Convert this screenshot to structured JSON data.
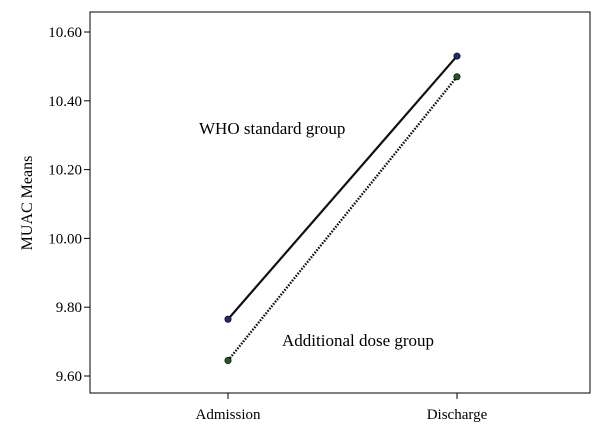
{
  "chart_data": {
    "type": "line",
    "ylabel": "MUAC Means",
    "xlabel": "",
    "categories": [
      "Admission",
      "Discharge"
    ],
    "ylim": [
      9.56,
      10.65
    ],
    "y_ticks": [
      "9.60",
      "9.80",
      "10.00",
      "10.20",
      "10.40",
      "10.60"
    ],
    "y_tick_values": [
      9.6,
      9.8,
      10.0,
      10.2,
      10.4,
      10.6
    ],
    "series": [
      {
        "name": "WHO standard group",
        "values": [
          9.765,
          10.53
        ],
        "line_style": "solid",
        "marker_color": "#1f2a78"
      },
      {
        "name": "Additional dose group",
        "values": [
          9.645,
          10.47
        ],
        "line_style": "dotted",
        "marker_color": "#1d5c1d"
      }
    ],
    "annotations": [
      {
        "text": "WHO standard group"
      },
      {
        "text": "Additional dose group"
      }
    ],
    "grid": false,
    "legend": "none"
  }
}
